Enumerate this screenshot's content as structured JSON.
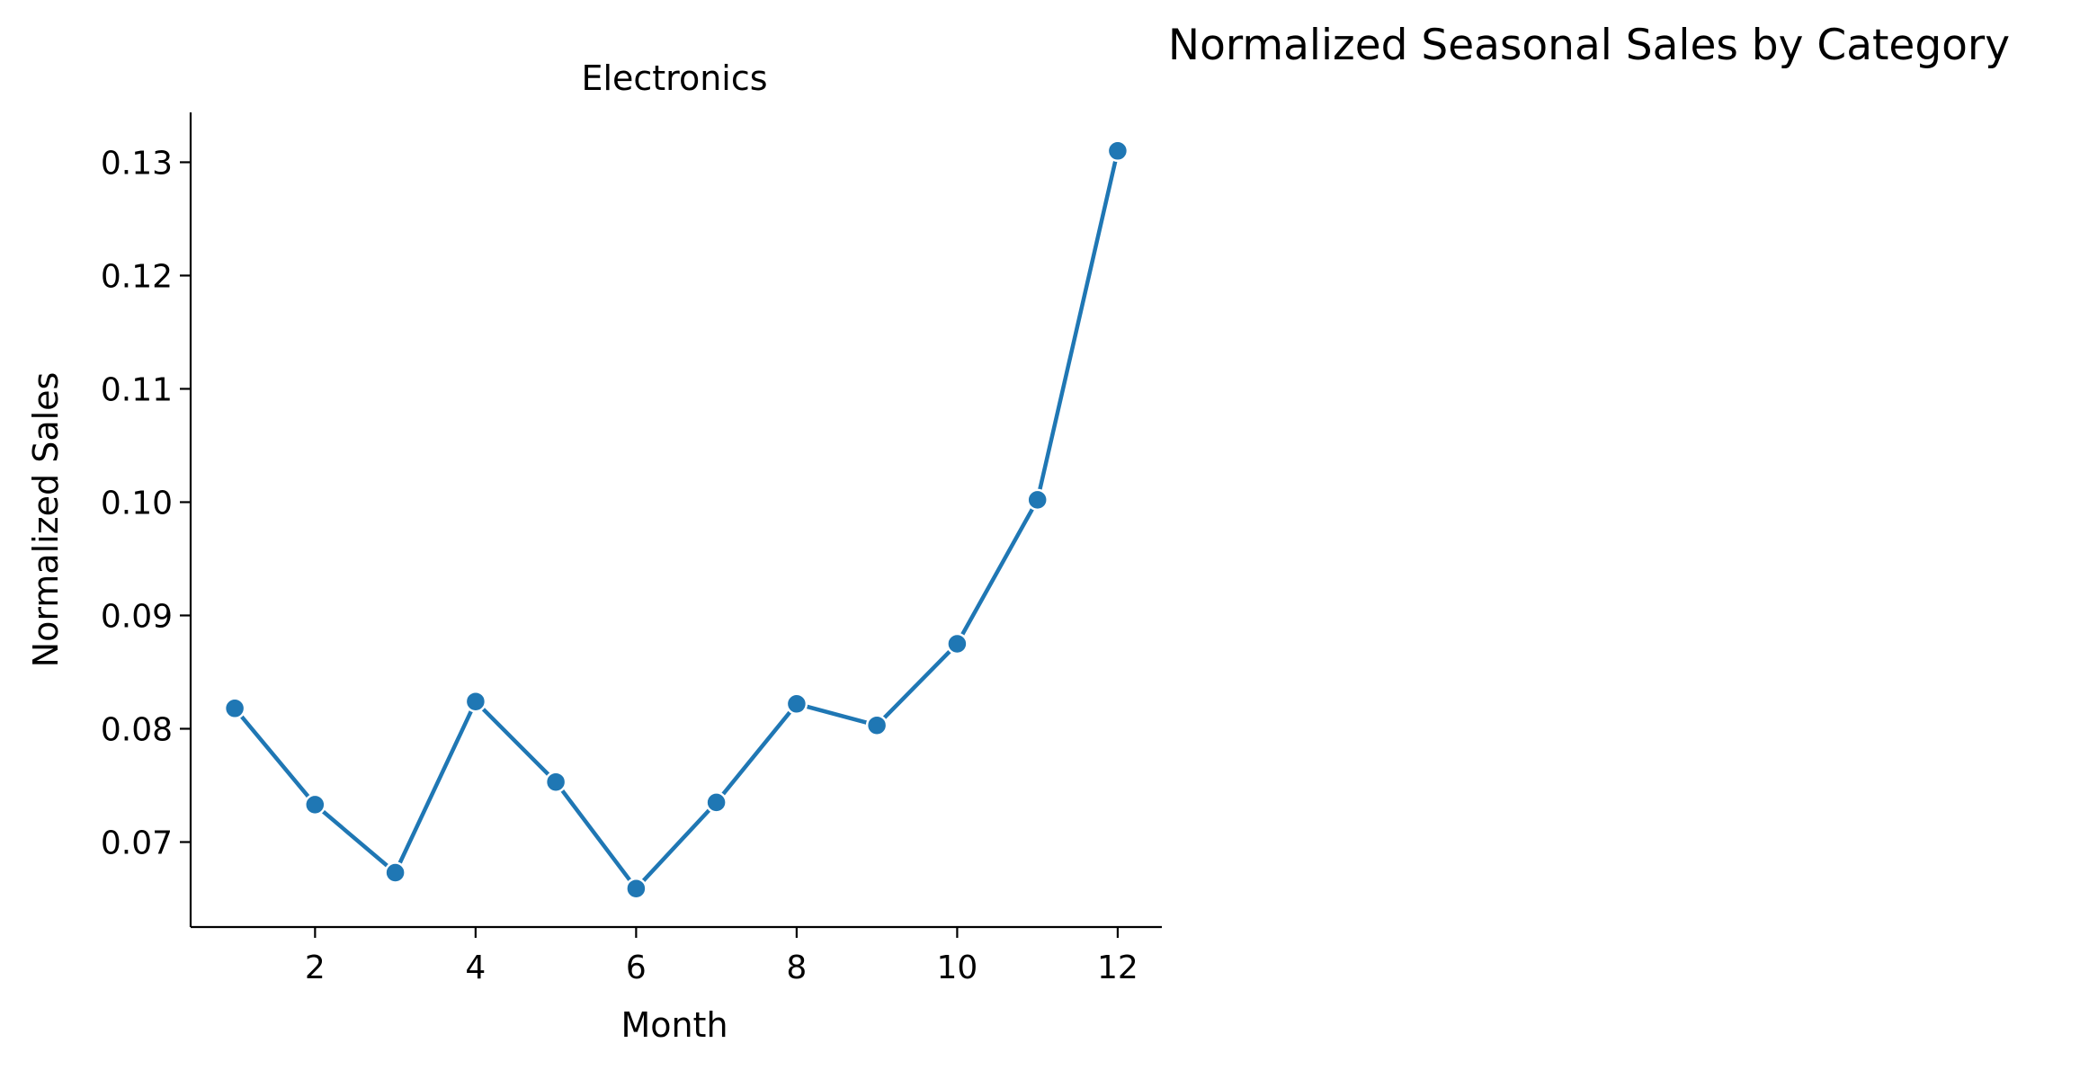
{
  "figure": {
    "title": "Normalized Seasonal Sales by Category"
  },
  "chart_data": {
    "type": "line",
    "title": "Electronics",
    "xlabel": "Month",
    "ylabel": "Normalized Sales",
    "x": [
      1,
      2,
      3,
      4,
      5,
      6,
      7,
      8,
      9,
      10,
      11,
      12
    ],
    "series": [
      {
        "values": [
          0.0818,
          0.0733,
          0.0673,
          0.0824,
          0.0753,
          0.0659,
          0.0735,
          0.0822,
          0.0803,
          0.0875,
          0.1002,
          0.131
        ],
        "color": "#1f77b4"
      }
    ],
    "xlim": [
      0.45,
      12.55
    ],
    "ylim": [
      0.0625,
      0.1344
    ],
    "xticks": [
      2,
      4,
      6,
      8,
      10,
      12
    ],
    "xtick_labels": [
      "2",
      "4",
      "6",
      "8",
      "10",
      "12"
    ],
    "yticks": [
      0.07,
      0.08,
      0.09,
      0.1,
      0.11,
      0.12,
      0.13
    ],
    "ytick_labels": [
      "0.07",
      "0.08",
      "0.09",
      "0.10",
      "0.11",
      "0.12",
      "0.13"
    ],
    "grid": false,
    "marker": "circle"
  }
}
